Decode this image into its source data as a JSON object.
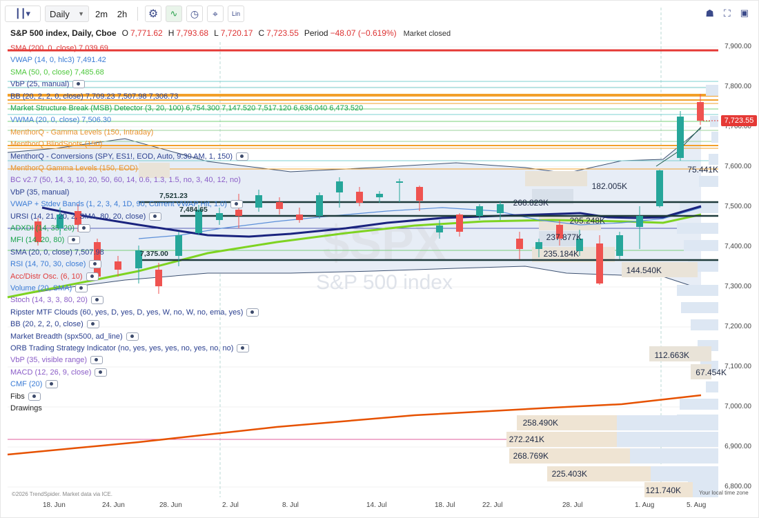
{
  "toolbar": {
    "chart_type_icon": "candlestick-icon",
    "interval": "Daily",
    "intervals": [
      "2m",
      "2h"
    ],
    "lin_label": "Lin"
  },
  "header": {
    "title": "S&P 500 index, Daily, Cboe",
    "open_label": "O",
    "open": "7,771.62",
    "high_label": "H",
    "high": "7,793.68",
    "low_label": "L",
    "low": "7,720.17",
    "close_label": "C",
    "close": "7,723.55",
    "period_label": "Period",
    "period": "−48.07 (−0.619%)",
    "status": "Market closed"
  },
  "indicators": [
    {
      "text": "SMA (200, 0, close)  7,039.69",
      "color": "#e03a3a",
      "eye": false,
      "strike": true
    },
    {
      "text": "VWAP (14, 0, hlc3)  7,491.42",
      "color": "#3a7bd5",
      "eye": false
    },
    {
      "text": "SMA (50, 0, close)  7,485.68",
      "color": "#4cc73b",
      "eye": false
    },
    {
      "text": "VbP (25, manual)",
      "color": "#2a3f8f",
      "eye": true
    },
    {
      "text": "BB (20, 2, 2, 0, close)  7,709.23  7,507.98  7,306.73",
      "color": "#2a3f8f",
      "eye": false
    },
    {
      "text": "Market Structure Break (MSB) Detector (3, 20, 100)  6,754.300  7,147.520  7,517.120  6,636.040  6,473.520",
      "color": "#17a34a",
      "eye": false
    },
    {
      "text": "VWMA (20, 0, close)  7,506.30",
      "color": "#3a7bd5",
      "eye": false
    },
    {
      "text": "MenthorQ - Gamma Levels (150, Intraday)",
      "color": "#e8912d",
      "eye": false
    },
    {
      "text": "MenthorQ BlindSpots (150)",
      "color": "#e8912d",
      "eye": false
    },
    {
      "text": "MenthorQ - Conversions (SPY, ES1!, EOD, Auto, 9:30 AM, 1, 150)",
      "color": "#2a3f8f",
      "eye": true
    },
    {
      "text": "MenthorQ Gamma Levels (150, EOD)",
      "color": "#e8912d",
      "eye": false
    },
    {
      "text": "BC v2.7 (50, 14, 3, 10, 20, 50, 60, 14, 0.6, 1.3, 1.5, no, 3, 40, 12, no)",
      "color": "#8a5cc7",
      "eye": false
    },
    {
      "text": "VbP (35, manual)",
      "color": "#2a3f8f",
      "eye": false
    },
    {
      "text": "VWAP + Stdev Bands (1, 2, 3, 4, 1D, 90, Current VWAP Hit, 1.0)",
      "color": "#3a7bd5",
      "eye": true
    },
    {
      "text": "URSI (14, 21, 20, 2, SMA, 80, 20, close)",
      "color": "#2a3f8f",
      "eye": true
    },
    {
      "text": "ADXDI (14, 35, 20)",
      "color": "#17a34a",
      "eye": true
    },
    {
      "text": "MFI (14, 20, 80)",
      "color": "#17a34a",
      "eye": true
    },
    {
      "text": "SMA (20, 0, close)  7,507.98",
      "color": "#2a3f8f",
      "eye": false
    },
    {
      "text": "RSI (14, 70, 30, close)",
      "color": "#3a7bd5",
      "eye": true
    },
    {
      "text": "Acc/Distr Osc. (6, 10)",
      "color": "#e03a3a",
      "eye": true
    },
    {
      "text": "Volume (20, SMA)",
      "color": "#3a7bd5",
      "eye": true
    },
    {
      "text": "Stoch (14, 3, 3, 80, 20)",
      "color": "#8a5cc7",
      "eye": true
    },
    {
      "text": "Ripster MTF Clouds (60, yes, D, yes, D, yes, W, no, W, no, ema, yes)",
      "color": "#2a3f8f",
      "eye": true
    },
    {
      "text": "BB (20, 2, 2, 0, close)",
      "color": "#2a3f8f",
      "eye": true
    },
    {
      "text": "Market Breadth (spx500, ad_line)",
      "color": "#2a3f8f",
      "eye": true
    },
    {
      "text": "ORB Trading Strategy Indicator (no, yes, yes, yes, no, yes, no, no)",
      "color": "#2a3f8f",
      "eye": true
    },
    {
      "text": "VbP (35, visible range)",
      "color": "#8a5cc7",
      "eye": true
    },
    {
      "text": "MACD (12, 26, 9, close)",
      "color": "#8a5cc7",
      "eye": true
    },
    {
      "text": "CMF (20)",
      "color": "#3a7bd5",
      "eye": true
    },
    {
      "text": "Fibs",
      "color": "#222222",
      "eye": true
    },
    {
      "text": "Drawings",
      "color": "#222222",
      "eye": false
    }
  ],
  "price_axis": [
    "7,900.00",
    "7,800.00",
    "7,700.00",
    "7,600.00",
    "7,500.00",
    "7,400.00",
    "7,300.00",
    "7,200.00",
    "7,100.00",
    "7,000.00",
    "6,900.00",
    "6,800.00"
  ],
  "last_price": "7,723.55",
  "date_axis": [
    "18. Jun",
    "24. Jun",
    "28. Jun",
    "2. Jul",
    "8. Jul",
    "14. Jul",
    "18. Jul",
    "22. Jul",
    "28. Jul",
    "1. Aug",
    "5. Aug"
  ],
  "volume_labels": [
    "75.441K",
    "182.005K",
    "268.823K",
    "205.248K",
    "237.877K",
    "235.184K",
    "144.540K",
    "112.663K",
    "67.454K",
    "258.490K",
    "272.241K",
    "268.769K",
    "225.403K",
    "121.740K"
  ],
  "level_labels": [
    "7,521.23",
    "7,484.65",
    "7,375.00"
  ],
  "watermark_symbol": "$SPX",
  "watermark_name": "S&P 500 index",
  "copyright": "©2026 TrendSpider. Market data via ICE.",
  "local_time": "Your local time zone",
  "colors": {
    "up": "#26a69a",
    "down": "#ef5350",
    "sma50": "#7ed321",
    "vwap": "#1a237e",
    "sma200": "#e65100"
  }
}
